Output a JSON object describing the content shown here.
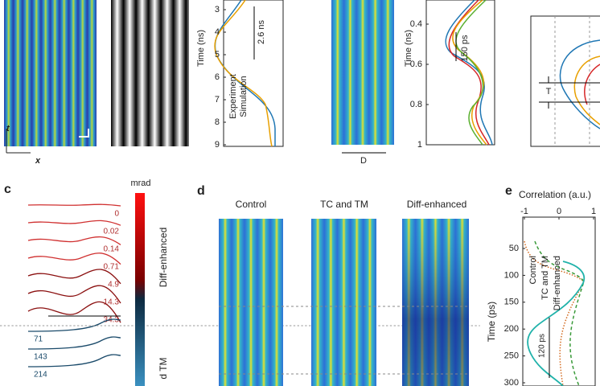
{
  "panel_a": {
    "axis_t": "t",
    "axis_x": "x",
    "plot1": {
      "ylabel": "Time (ns)",
      "yticks": [
        "3",
        "4",
        "5",
        "6",
        "7",
        "8",
        "9"
      ],
      "annotation": "2.6 ns",
      "legend": [
        "Experiment",
        "Simulation"
      ]
    },
    "plot2": {
      "ylabel": "Time (ns)",
      "yticks": [
        "0.4",
        "0.6",
        "0.8",
        "1"
      ],
      "annotation": "150 ps",
      "width_label": "D"
    },
    "plot3": {
      "label": "T"
    }
  },
  "panel_c": {
    "letter": "c",
    "unit": "mrad",
    "colorbar_label_top": "Diff-enhanced",
    "colorbar_label_bottom": "d TM",
    "red_labels": [
      "0",
      "0.02",
      "0.14",
      "0.71",
      "4.9",
      "14.3",
      "34.3"
    ],
    "blue_labels": [
      "71",
      "143",
      "214"
    ]
  },
  "panel_d": {
    "letter": "d",
    "titles": [
      "Control",
      "TC and TM",
      "Diff-enhanced"
    ]
  },
  "panel_e": {
    "letter": "e",
    "xlabel": "Correlation (a.u.)",
    "xticks": [
      "-1",
      "0",
      "1"
    ],
    "ylabel": "Time (ps)",
    "yticks": [
      "50",
      "100",
      "150",
      "200",
      "250",
      "300"
    ],
    "legend": [
      "Control",
      "TC and TM",
      "Diff-enhanced"
    ],
    "annotation": "120 ps"
  }
}
